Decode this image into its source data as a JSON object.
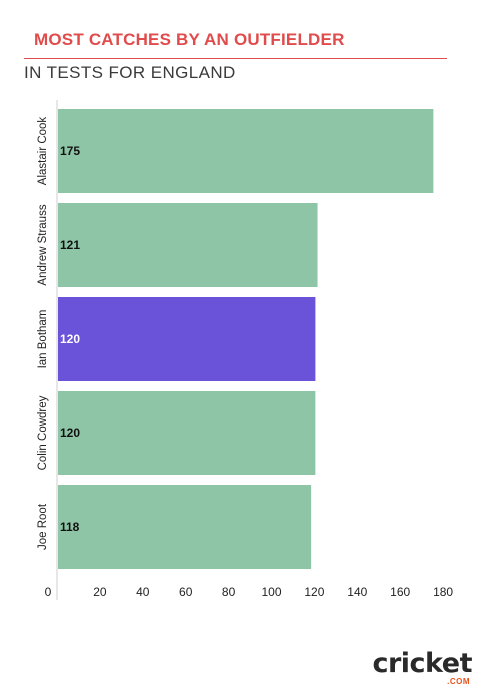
{
  "header": {
    "title": "MOST CATCHES BY AN OUTFIELDER",
    "subtitle": "IN TESTS FOR ENGLAND"
  },
  "colors": {
    "title": "#e14b4b",
    "default_bar": "#8fc5a7",
    "highlight_bar": "#6a52d9",
    "logo_accent": "#e8541c"
  },
  "logo": {
    "wordmark": "cricket",
    "suffix": ".COM"
  },
  "chart_data": {
    "type": "bar",
    "orientation": "horizontal",
    "categories": [
      "Alastair Cook",
      "Andrew Strauss",
      "Ian Botham",
      "Colin Cowdrey",
      "Joe Root"
    ],
    "values": [
      175,
      121,
      120,
      120,
      118
    ],
    "highlight": "Ian Botham",
    "xlim": [
      0,
      190
    ],
    "xticks": [
      0,
      20,
      40,
      60,
      80,
      100,
      120,
      140,
      160,
      180
    ],
    "title": "MOST CATCHES BY AN OUTFIELDER",
    "subtitle": "IN TESTS FOR ENGLAND",
    "xlabel": "",
    "ylabel": "",
    "grid": false
  }
}
